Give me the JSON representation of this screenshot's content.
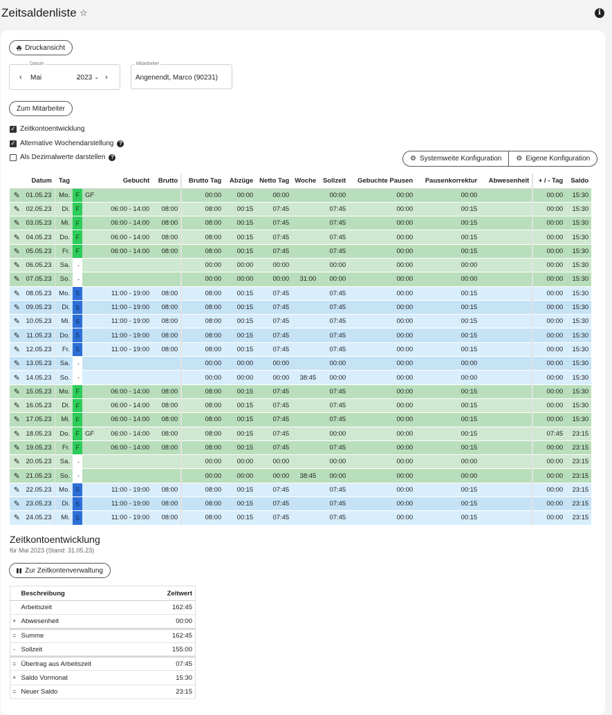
{
  "page": {
    "title": "Zeitsaldenliste"
  },
  "toolbar": {
    "print_label": "Druckansicht"
  },
  "date": {
    "legend": "Datum",
    "month": "Mai",
    "year": "2023"
  },
  "employee": {
    "legend": "Mitarbeiter",
    "value": "Angenendt, Marco (90231)"
  },
  "to_employee_label": "Zum Mitarbeiter",
  "options": [
    {
      "label": "Zeitkontoentwicklung",
      "checked": true,
      "help": false
    },
    {
      "label": "Alternative Wochendarstellung",
      "checked": true,
      "help": true
    },
    {
      "label": "Als Dezimalwerte darstellen",
      "checked": false,
      "help": true
    }
  ],
  "config": {
    "system_label": "Systemweite Konfiguration",
    "own_label": "Eigene Konfiguration"
  },
  "table": {
    "columns": [
      "Datum",
      "Tag",
      "",
      "",
      "Gebucht",
      "Brutto",
      "Brutto Tag",
      "Abzüge",
      "Netto Tag",
      "Woche",
      "Sollzeit",
      "Gebuchte Pausen",
      "Pausenkorrektur",
      "Abwesenheit",
      "+ / - Tag",
      "Saldo"
    ],
    "rows": [
      [
        "01.05.23",
        "Mo.",
        "F",
        "GF",
        "",
        "",
        "00:00",
        "00:00",
        "00:00",
        "",
        "00:00",
        "00:00",
        "00:00",
        "",
        "00:00",
        "15:30"
      ],
      [
        "02.05.23",
        "Di.",
        "F",
        "",
        "06:00  -  14:00",
        "08:00",
        "08:00",
        "00:15",
        "07:45",
        "",
        "07:45",
        "00:00",
        "00:15",
        "",
        "00:00",
        "15:30"
      ],
      [
        "03.05.23",
        "Mi.",
        "F",
        "",
        "06:00  -  14:00",
        "08:00",
        "08:00",
        "00:15",
        "07:45",
        "",
        "07:45",
        "00:00",
        "00:15",
        "",
        "00:00",
        "15:30"
      ],
      [
        "04.05.23",
        "Do.",
        "F",
        "",
        "06:00  -  14:00",
        "08:00",
        "08:00",
        "00:15",
        "07:45",
        "",
        "07:45",
        "00:00",
        "00:15",
        "",
        "00:00",
        "15:30"
      ],
      [
        "05.05.23",
        "Fr.",
        "F",
        "",
        "06:00  -  14:00",
        "08:00",
        "08:00",
        "00:15",
        "07:45",
        "",
        "07:45",
        "00:00",
        "00:15",
        "",
        "00:00",
        "15:30"
      ],
      [
        "06.05.23",
        "Sa.",
        "-",
        "",
        "",
        "",
        "00:00",
        "00:00",
        "00:00",
        "",
        "00:00",
        "00:00",
        "00:00",
        "",
        "00:00",
        "15:30"
      ],
      [
        "07.05.23",
        "So.",
        "-",
        "",
        "",
        "",
        "00:00",
        "00:00",
        "00:00",
        "31:00",
        "00:00",
        "00:00",
        "00:00",
        "",
        "00:00",
        "15:30"
      ],
      [
        "08.05.23",
        "Mo.",
        "S",
        "",
        "11:00  -  19:00",
        "08:00",
        "08:00",
        "00:15",
        "07:45",
        "",
        "07:45",
        "00:00",
        "00:15",
        "",
        "00:00",
        "15:30"
      ],
      [
        "09.05.23",
        "Di.",
        "S",
        "",
        "11:00  -  19:00",
        "08:00",
        "08:00",
        "00:15",
        "07:45",
        "",
        "07:45",
        "00:00",
        "00:15",
        "",
        "00:00",
        "15:30"
      ],
      [
        "10.05.23",
        "Mi.",
        "S",
        "",
        "11:00  -  19:00",
        "08:00",
        "08:00",
        "00:15",
        "07:45",
        "",
        "07:45",
        "00:00",
        "00:15",
        "",
        "00:00",
        "15:30"
      ],
      [
        "11.05.23",
        "Do.",
        "S",
        "",
        "11:00  -  19:00",
        "08:00",
        "08:00",
        "00:15",
        "07:45",
        "",
        "07:45",
        "00:00",
        "00:15",
        "",
        "00:00",
        "15:30"
      ],
      [
        "12.05.23",
        "Fr.",
        "S",
        "",
        "11:00  -  19:00",
        "08:00",
        "08:00",
        "00:15",
        "07:45",
        "",
        "07:45",
        "00:00",
        "00:15",
        "",
        "00:00",
        "15:30"
      ],
      [
        "13.05.23",
        "Sa.",
        "-",
        "",
        "",
        "",
        "00:00",
        "00:00",
        "00:00",
        "",
        "00:00",
        "00:00",
        "00:00",
        "",
        "00:00",
        "15:30"
      ],
      [
        "14.05.23",
        "So.",
        "-",
        "",
        "",
        "",
        "00:00",
        "00:00",
        "00:00",
        "38:45",
        "00:00",
        "00:00",
        "00:00",
        "",
        "00:00",
        "15:30"
      ],
      [
        "15.05.23",
        "Mo.",
        "F",
        "",
        "06:00  -  14:00",
        "08:00",
        "08:00",
        "00:15",
        "07:45",
        "",
        "07:45",
        "00:00",
        "00:15",
        "",
        "00:00",
        "15:30"
      ],
      [
        "16.05.23",
        "Di.",
        "F",
        "",
        "06:00  -  14:00",
        "08:00",
        "08:00",
        "00:15",
        "07:45",
        "",
        "07:45",
        "00:00",
        "00:15",
        "",
        "00:00",
        "15:30"
      ],
      [
        "17.05.23",
        "Mi.",
        "F",
        "",
        "06:00  -  14:00",
        "08:00",
        "08:00",
        "00:15",
        "07:45",
        "",
        "07:45",
        "00:00",
        "00:15",
        "",
        "00:00",
        "15:30"
      ],
      [
        "18.05.23",
        "Do.",
        "F",
        "GF",
        "06:00  -  14:00",
        "08:00",
        "08:00",
        "00:15",
        "07:45",
        "",
        "00:00",
        "00:00",
        "00:15",
        "",
        "07:45",
        "23:15"
      ],
      [
        "19.05.23",
        "Fr.",
        "F",
        "",
        "06:00  -  14:00",
        "08:00",
        "08:00",
        "00:15",
        "07:45",
        "",
        "07:45",
        "00:00",
        "00:15",
        "",
        "00:00",
        "23:15"
      ],
      [
        "20.05.23",
        "Sa.",
        "-",
        "",
        "",
        "",
        "00:00",
        "00:00",
        "00:00",
        "",
        "00:00",
        "00:00",
        "00:00",
        "",
        "00:00",
        "23:15"
      ],
      [
        "21.05.23",
        "So.",
        "-",
        "",
        "",
        "",
        "00:00",
        "00:00",
        "00:00",
        "38:45",
        "00:00",
        "00:00",
        "00:00",
        "",
        "00:00",
        "23:15"
      ],
      [
        "22.05.23",
        "Mo.",
        "S",
        "",
        "11:00  -  19:00",
        "08:00",
        "08:00",
        "00:15",
        "07:45",
        "",
        "07:45",
        "00:00",
        "00:15",
        "",
        "00:00",
        "23:15"
      ],
      [
        "23.05.23",
        "Di.",
        "S",
        "",
        "11:00  -  19:00",
        "08:00",
        "08:00",
        "00:15",
        "07:45",
        "",
        "07:45",
        "00:00",
        "00:15",
        "",
        "00:00",
        "23:15"
      ],
      [
        "24.05.23",
        "Mi.",
        "S",
        "",
        "11:00  -  19:00",
        "08:00",
        "08:00",
        "00:15",
        "07:45",
        "",
        "07:45",
        "00:00",
        "00:15",
        "",
        "00:00",
        "23:15"
      ]
    ]
  },
  "account": {
    "title": "Zeitkontoentwicklung",
    "subtitle": "für Mai 2023 (Stand: 31.05.23)",
    "button_label": "Zur Zeitkontenverwaltung",
    "columns": [
      "Beschreibung",
      "Zeitwert"
    ],
    "rows": [
      {
        "op": "",
        "label": "Arbeitszeit",
        "value": "162:45",
        "thick": false
      },
      {
        "op": "+",
        "label": "Abwesenheit",
        "value": "00:00",
        "thick": true
      },
      {
        "op": "=",
        "label": "Summe",
        "value": "162:45",
        "thick": false
      },
      {
        "op": "-",
        "label": "Sollzeit",
        "value": "155:00",
        "thick": true
      },
      {
        "op": "=",
        "label": "Übertrag aus Arbeitszeit",
        "value": "07:45",
        "thick": false
      },
      {
        "op": "+",
        "label": "Saldo Vormonat",
        "value": "15:30",
        "thick": false
      },
      {
        "op": "=",
        "label": "Neuer Saldo",
        "value": "23:15",
        "thick": false
      }
    ]
  },
  "colors": {
    "green_dark": "#b9debb",
    "green_light": "#cfe8d0",
    "blue_dark": "#c6e3f6",
    "blue_light": "#d9eefc",
    "code_F": "#2ecc5a",
    "code_S": "#2e6fd6"
  },
  "icons": {
    "edit": "pencil-icon",
    "print": "printer-icon",
    "config": "gears-icon",
    "info": "info-icon",
    "favorite": "star-icon",
    "account": "columns-icon"
  }
}
